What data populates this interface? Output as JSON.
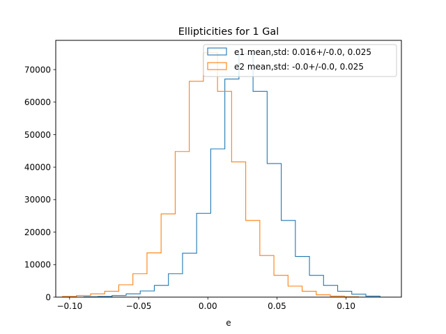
{
  "chart_data": {
    "type": "histogram",
    "title": "Ellipticities for 1 Gal",
    "xlabel": "e",
    "ylabel": "",
    "xlim": [
      -0.11,
      0.14
    ],
    "ylim": [
      0,
      79000
    ],
    "grid": false,
    "legend_position": "top-right",
    "xticks": [
      {
        "value": -0.1,
        "label": "−0.10"
      },
      {
        "value": -0.05,
        "label": "−0.05"
      },
      {
        "value": 0.0,
        "label": "0.00"
      },
      {
        "value": 0.05,
        "label": "0.05"
      },
      {
        "value": 0.1,
        "label": "0.10"
      }
    ],
    "yticks": [
      {
        "value": 0,
        "label": "0"
      },
      {
        "value": 10000,
        "label": "10000"
      },
      {
        "value": 20000,
        "label": "20000"
      },
      {
        "value": 30000,
        "label": "30000"
      },
      {
        "value": 40000,
        "label": "40000"
      },
      {
        "value": 50000,
        "label": "50000"
      },
      {
        "value": 60000,
        "label": "60000"
      },
      {
        "value": 70000,
        "label": "70000"
      }
    ],
    "series": [
      {
        "name": "e1 mean,std: 0.016+/-0.0, 0.025",
        "color": "#1f77b4",
        "edges": [
          -0.0897,
          -0.0795,
          -0.0693,
          -0.0591,
          -0.0489,
          -0.0387,
          -0.0285,
          -0.0183,
          -0.0081,
          0.0021,
          0.0123,
          0.0225,
          0.0327,
          0.0429,
          0.0531,
          0.0633,
          0.0735,
          0.0837,
          0.0939,
          0.1041,
          0.1143,
          0.1245
        ],
        "counts": [
          100,
          200,
          500,
          1000,
          1900,
          3600,
          7200,
          13500,
          25800,
          45600,
          67100,
          74800,
          63300,
          41100,
          23600,
          12500,
          6700,
          3600,
          1800,
          900,
          300
        ]
      },
      {
        "name": "e2 mean,std: -0.0+/-0.0, 0.025",
        "color": "#ff7f0e",
        "edges": [
          -0.1052,
          -0.095,
          -0.0848,
          -0.0746,
          -0.0644,
          -0.0542,
          -0.044,
          -0.0338,
          -0.0236,
          -0.0134,
          -0.0032,
          0.007,
          0.0172,
          0.0274,
          0.0376,
          0.0478,
          0.058,
          0.0682,
          0.0784,
          0.0886,
          0.0988,
          0.109
        ],
        "counts": [
          200,
          500,
          1000,
          1800,
          3800,
          7200,
          13600,
          25600,
          44800,
          66400,
          75200,
          63300,
          41600,
          23600,
          12800,
          6700,
          3400,
          1800,
          700,
          300,
          100
        ]
      }
    ]
  }
}
